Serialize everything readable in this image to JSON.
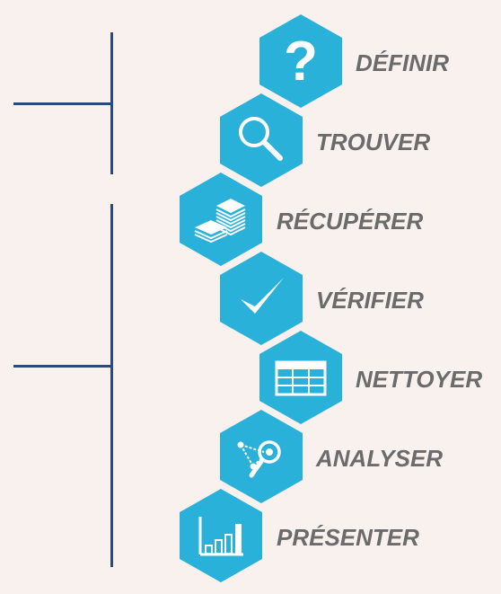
{
  "colors": {
    "background": "#f8f1ee",
    "hexagon": "#29b1da",
    "icon": "#ffffff",
    "label": "#6b6b6b",
    "bracket": "#2b4a78"
  },
  "steps": [
    {
      "label": "DÉFINIR",
      "icon": "question-mark-icon"
    },
    {
      "label": "TROUVER",
      "icon": "magnifier-icon"
    },
    {
      "label": "RÉCUPÉRER",
      "icon": "stacked-documents-icon"
    },
    {
      "label": "VÉRIFIER",
      "icon": "checkmark-icon"
    },
    {
      "label": "NETTOYER",
      "icon": "spreadsheet-grid-icon"
    },
    {
      "label": "ANALYSER",
      "icon": "network-analysis-icon"
    },
    {
      "label": "PRÉSENTER",
      "icon": "bar-chart-icon"
    }
  ]
}
